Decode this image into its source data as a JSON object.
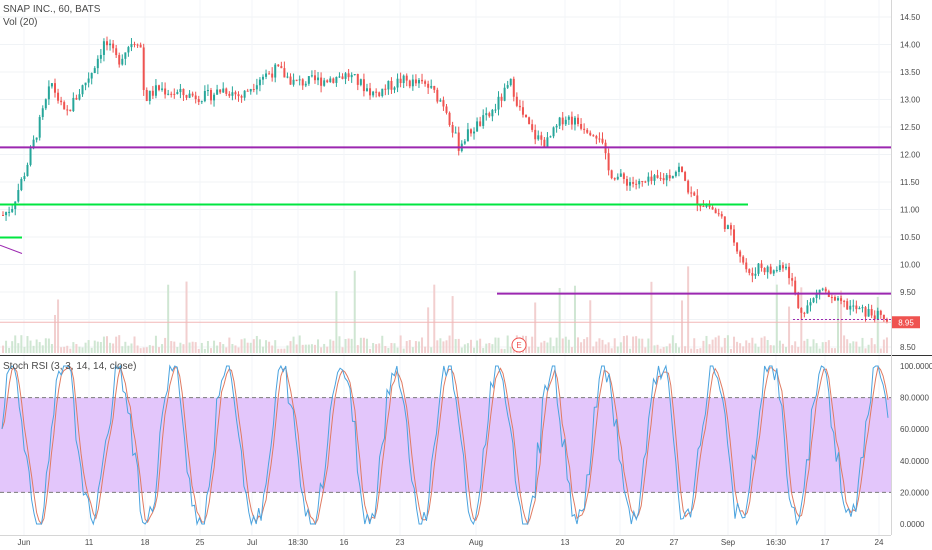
{
  "header": {
    "title": "SNAP INC., 60, BATS",
    "volume_label": "Vol (20)"
  },
  "rsi_panel": {
    "label": "Stoch RSI (3, 3, 14, 14, close)",
    "y_ticks": [
      "100.0000",
      "80.0000",
      "60.0000",
      "40.0000",
      "20.0000",
      "0.0000"
    ],
    "band_upper": 80,
    "band_lower": 20,
    "band_color": "#e3c6fb",
    "k_color": "#4aa3df",
    "d_color": "#e07b62"
  },
  "colors": {
    "up": "#26a69a",
    "down": "#ef5350",
    "support_purple": "#9c27b0",
    "support_green": "#00e640",
    "price_marker": "#ef5350",
    "volume_up": "#cfe6d2",
    "volume_down": "#f2cfcf"
  },
  "price_marker": {
    "value": "8.95"
  },
  "earnings_marker": {
    "label": "E"
  },
  "x_ticks": [
    "Jun",
    "11",
    "18",
    "25",
    "Jul",
    "18:30",
    "16",
    "23",
    "Aug",
    "13",
    "20",
    "27",
    "Sep",
    "16:30",
    "17",
    "24"
  ],
  "chart_data": {
    "type": "candlestick",
    "title": "SNAP INC., 60, BATS",
    "y_ticks": [
      "14.50",
      "14.00",
      "13.50",
      "13.00",
      "12.50",
      "12.00",
      "11.50",
      "11.00",
      "10.50",
      "10.00",
      "9.50",
      "9.00",
      "8.50"
    ],
    "ylim": [
      8.35,
      14.75
    ],
    "last_price": 8.95,
    "horizontal_lines": [
      {
        "price": 12.13,
        "color": "purple"
      },
      {
        "price": 11.09,
        "color": "green"
      },
      {
        "price": 9.47,
        "color": "purple"
      },
      {
        "price": 10.49,
        "color": "green"
      }
    ],
    "close_path": [
      [
        0,
        10.9
      ],
      [
        0.01,
        11.05
      ],
      [
        0.025,
        11.7
      ],
      [
        0.04,
        12.5
      ],
      [
        0.055,
        13.3
      ],
      [
        0.07,
        12.7
      ],
      [
        0.085,
        13.1
      ],
      [
        0.1,
        13.5
      ],
      [
        0.115,
        14.05
      ],
      [
        0.13,
        13.7
      ],
      [
        0.145,
        14.05
      ],
      [
        0.155,
        14.1
      ],
      [
        0.16,
        13.0
      ],
      [
        0.175,
        13.2
      ],
      [
        0.2,
        13.1
      ],
      [
        0.23,
        13.05
      ],
      [
        0.25,
        13.2
      ],
      [
        0.27,
        13.05
      ],
      [
        0.29,
        13.4
      ],
      [
        0.31,
        13.55
      ],
      [
        0.33,
        13.3
      ],
      [
        0.36,
        13.35
      ],
      [
        0.39,
        13.45
      ],
      [
        0.42,
        13.1
      ],
      [
        0.45,
        13.35
      ],
      [
        0.48,
        13.25
      ],
      [
        0.5,
        12.9
      ],
      [
        0.515,
        12.15
      ],
      [
        0.53,
        12.45
      ],
      [
        0.55,
        12.7
      ],
      [
        0.575,
        13.3
      ],
      [
        0.585,
        12.8
      ],
      [
        0.6,
        12.35
      ],
      [
        0.615,
        12.2
      ],
      [
        0.635,
        12.7
      ],
      [
        0.66,
        12.5
      ],
      [
        0.675,
        12.35
      ],
      [
        0.685,
        11.7
      ],
      [
        0.7,
        11.55
      ],
      [
        0.72,
        11.45
      ],
      [
        0.745,
        11.55
      ],
      [
        0.765,
        11.75
      ],
      [
        0.78,
        11.2
      ],
      [
        0.8,
        11.05
      ],
      [
        0.815,
        10.8
      ],
      [
        0.83,
        10.35
      ],
      [
        0.845,
        9.75
      ],
      [
        0.855,
        10.0
      ],
      [
        0.87,
        9.85
      ],
      [
        0.885,
        10.05
      ],
      [
        0.895,
        9.55
      ],
      [
        0.9,
        9.15
      ],
      [
        0.915,
        9.3
      ],
      [
        0.925,
        9.6
      ],
      [
        0.94,
        9.3
      ],
      [
        0.955,
        9.25
      ],
      [
        0.97,
        9.15
      ],
      [
        0.985,
        9.1
      ],
      [
        1.0,
        8.95
      ]
    ],
    "stoch_rsi_range": [
      0,
      100
    ]
  }
}
